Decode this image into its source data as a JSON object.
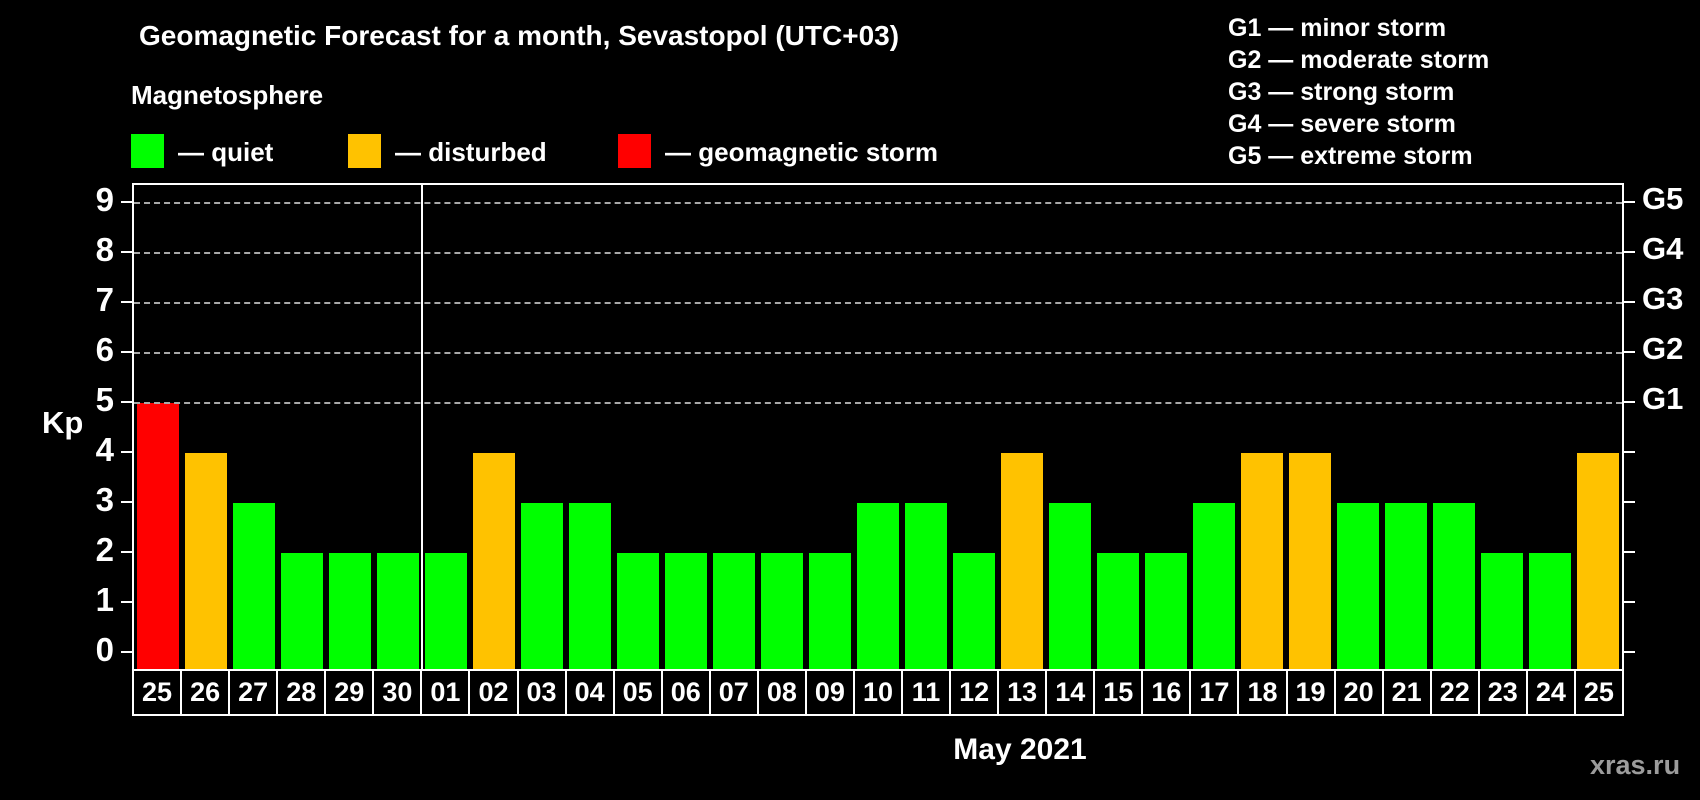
{
  "title": "Geomagnetic Forecast for a month, Sevastopol (UTC+03)",
  "subtitle": "Magnetosphere",
  "legend": {
    "quiet": {
      "label": "— quiet",
      "color": "#00ff00"
    },
    "disturbed": {
      "label": "— disturbed",
      "color": "#ffc200"
    },
    "storm": {
      "label": "— geomagnetic storm",
      "color": "#ff0000"
    }
  },
  "g_scale_legend": [
    "G1 — minor storm",
    "G2 — moderate storm",
    "G3 — strong storm",
    "G4 — severe storm",
    "G5 — extreme storm"
  ],
  "axes": {
    "y_label": "Kp",
    "y_ticks": [
      0,
      1,
      2,
      3,
      4,
      5,
      6,
      7,
      8,
      9
    ],
    "right_labels": [
      {
        "text": "G1",
        "value": 5
      },
      {
        "text": "G2",
        "value": 6
      },
      {
        "text": "G3",
        "value": 7
      },
      {
        "text": "G4",
        "value": 8
      },
      {
        "text": "G5",
        "value": 9
      }
    ]
  },
  "x_axis_label": "May 2021",
  "watermark": "xras.ru",
  "colors": {
    "quiet": "#00ff00",
    "disturbed": "#ffc200",
    "storm": "#ff0000",
    "background": "#000000",
    "grid": "#a8a8a8",
    "text": "#ffffff",
    "watermark": "#9c9c9c"
  },
  "chart_data": {
    "type": "bar",
    "title": "Geomagnetic Forecast for a month, Sevastopol (UTC+03)",
    "ylabel": "Kp",
    "xlabel": "May 2021",
    "ylim": [
      0,
      9
    ],
    "grid": "dashed horizontal at Kp 5-9 (G1-G5)",
    "gridline_values": [
      5,
      6,
      7,
      8,
      9
    ],
    "legend_position": "top-left",
    "categories": [
      "25",
      "26",
      "27",
      "28",
      "29",
      "30",
      "01",
      "02",
      "03",
      "04",
      "05",
      "06",
      "07",
      "08",
      "09",
      "10",
      "11",
      "12",
      "13",
      "14",
      "15",
      "16",
      "17",
      "18",
      "19",
      "20",
      "21",
      "22",
      "23",
      "24",
      "25"
    ],
    "values": [
      5,
      4,
      3,
      2,
      2,
      2,
      2,
      4,
      3,
      3,
      2,
      2,
      2,
      2,
      2,
      3,
      3,
      2,
      4,
      3,
      2,
      2,
      3,
      4,
      4,
      3,
      3,
      3,
      2,
      2,
      4
    ],
    "statuses": [
      "storm",
      "disturbed",
      "quiet",
      "quiet",
      "quiet",
      "quiet",
      "quiet",
      "disturbed",
      "quiet",
      "quiet",
      "quiet",
      "quiet",
      "quiet",
      "quiet",
      "quiet",
      "quiet",
      "quiet",
      "quiet",
      "disturbed",
      "quiet",
      "quiet",
      "quiet",
      "quiet",
      "disturbed",
      "disturbed",
      "quiet",
      "quiet",
      "quiet",
      "quiet",
      "quiet",
      "disturbed"
    ],
    "month_separator_after_index": 5
  }
}
